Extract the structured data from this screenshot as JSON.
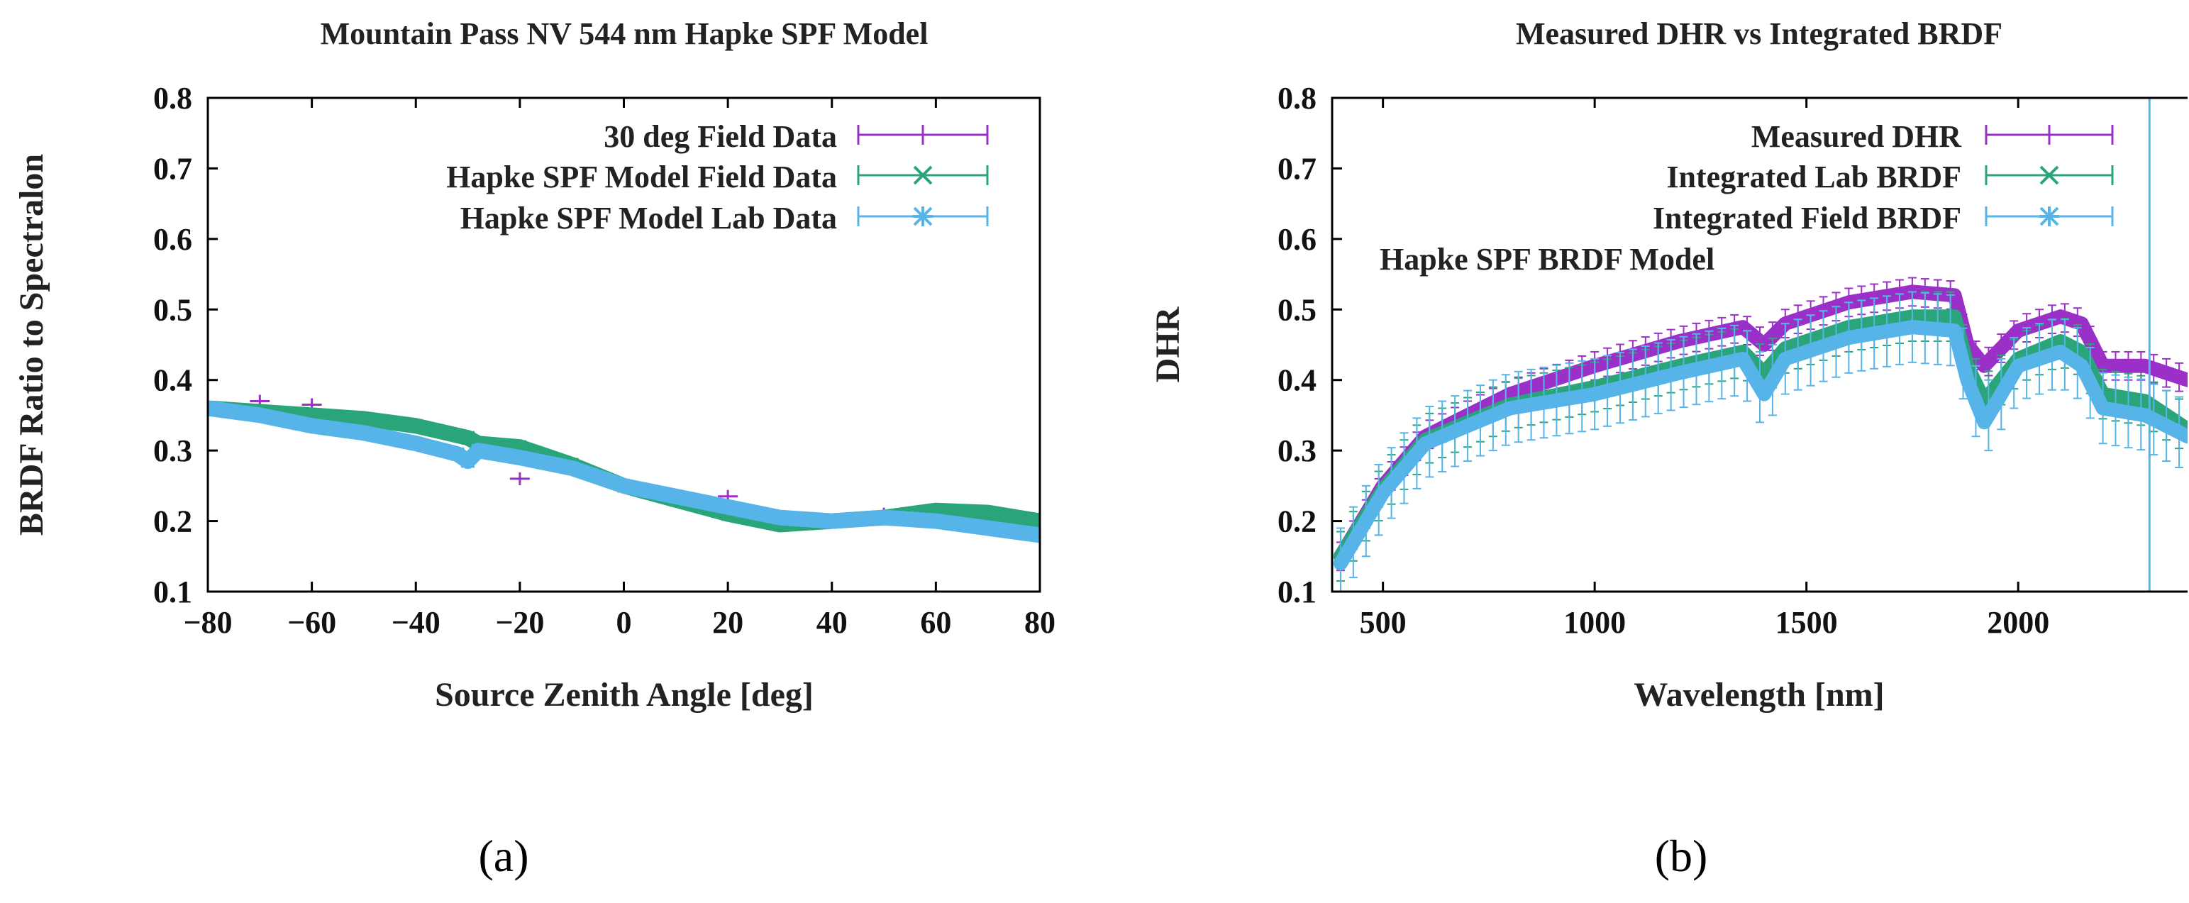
{
  "chart_data": [
    {
      "type": "line",
      "panel_caption": "(a)",
      "title": "Mountain Pass NV 544 nm Hapke SPF Model",
      "xlabel": "Source Zenith Angle [deg]",
      "ylabel": "BRDF Ratio to Spectralon",
      "xlim": [
        -80,
        80
      ],
      "ylim": [
        0.1,
        0.8
      ],
      "xticks": [
        -80,
        -60,
        -40,
        -20,
        0,
        20,
        40,
        60,
        80
      ],
      "xtick_labels": [
        "−80",
        "−60",
        "−40",
        "−20",
        "0",
        "20",
        "40",
        "60",
        "80"
      ],
      "yticks": [
        0.1,
        0.2,
        0.3,
        0.4,
        0.5,
        0.6,
        0.7,
        0.8
      ],
      "ytick_labels": [
        "0.1",
        "0.2",
        "0.3",
        "0.4",
        "0.5",
        "0.6",
        "0.7",
        "0.8"
      ],
      "grid": false,
      "legend_position": "top-right",
      "series": [
        {
          "name": "30 deg Field Data",
          "color": "#9b30c8",
          "style": "points-errorbars",
          "x": [
            -70,
            -60,
            -20,
            20,
            50
          ],
          "y": [
            0.37,
            0.365,
            0.26,
            0.235,
            0.21
          ]
        },
        {
          "name": "Hapke SPF Model Field Data",
          "color": "#2aa57a",
          "style": "thick-band",
          "x": [
            -80,
            -70,
            -60,
            -50,
            -40,
            -30,
            -28,
            -20,
            -10,
            0,
            10,
            20,
            30,
            40,
            50,
            60,
            70,
            80
          ],
          "y": [
            0.36,
            0.355,
            0.35,
            0.345,
            0.335,
            0.318,
            0.31,
            0.305,
            0.28,
            0.25,
            0.23,
            0.21,
            0.195,
            0.2,
            0.205,
            0.215,
            0.212,
            0.2
          ]
        },
        {
          "name": "Hapke SPF Model Lab Data",
          "color": "#56b4e9",
          "style": "thick-band",
          "x": [
            -80,
            -70,
            -60,
            -50,
            -40,
            -32,
            -30,
            -28,
            -20,
            -10,
            0,
            10,
            20,
            30,
            40,
            50,
            60,
            70,
            80
          ],
          "y": [
            0.36,
            0.35,
            0.335,
            0.325,
            0.31,
            0.295,
            0.285,
            0.3,
            0.29,
            0.275,
            0.25,
            0.235,
            0.22,
            0.205,
            0.2,
            0.205,
            0.2,
            0.19,
            0.18
          ]
        }
      ]
    },
    {
      "type": "line",
      "panel_caption": "(b)",
      "title": "Measured DHR vs Integrated BRDF",
      "xlabel": "Wavelength [nm]",
      "ylabel": "DHR",
      "xlim": [
        380,
        2400
      ],
      "ylim": [
        0.1,
        0.8
      ],
      "xticks": [
        500,
        1000,
        1500,
        2000
      ],
      "xtick_labels": [
        "500",
        "1000",
        "1500",
        "2000"
      ],
      "yticks": [
        0.1,
        0.2,
        0.3,
        0.4,
        0.5,
        0.6,
        0.7,
        0.8
      ],
      "ytick_labels": [
        "0.1",
        "0.2",
        "0.3",
        "0.4",
        "0.5",
        "0.6",
        "0.7",
        "0.8"
      ],
      "grid": false,
      "legend_position": "top-right",
      "annotation": "Hapke SPF BRDF Model",
      "series": [
        {
          "name": "Measured DHR",
          "color": "#9b30c8",
          "style": "thick-band",
          "x": [
            400,
            500,
            600,
            700,
            800,
            1000,
            1200,
            1350,
            1400,
            1450,
            1600,
            1750,
            1850,
            1880,
            1920,
            2000,
            2100,
            2150,
            2200,
            2300,
            2400
          ],
          "y": [
            0.15,
            0.25,
            0.32,
            0.35,
            0.38,
            0.42,
            0.455,
            0.475,
            0.45,
            0.48,
            0.51,
            0.525,
            0.52,
            0.45,
            0.42,
            0.47,
            0.49,
            0.48,
            0.42,
            0.42,
            0.4
          ]
        },
        {
          "name": "Integrated Lab BRDF",
          "color": "#2aa57a",
          "style": "thick-band",
          "x": [
            400,
            500,
            600,
            700,
            800,
            1000,
            1200,
            1350,
            1400,
            1450,
            1600,
            1750,
            1850,
            1880,
            1920,
            2000,
            2100,
            2150,
            2200,
            2300,
            2400
          ],
          "y": [
            0.15,
            0.245,
            0.315,
            0.34,
            0.365,
            0.39,
            0.42,
            0.44,
            0.41,
            0.445,
            0.475,
            0.49,
            0.49,
            0.42,
            0.37,
            0.43,
            0.455,
            0.44,
            0.38,
            0.37,
            0.33
          ]
        },
        {
          "name": "Integrated Field BRDF",
          "color": "#56b4e9",
          "style": "thick-band",
          "x": [
            400,
            500,
            600,
            700,
            800,
            1000,
            1200,
            1350,
            1400,
            1450,
            1600,
            1750,
            1850,
            1880,
            1920,
            2000,
            2100,
            2150,
            2200,
            2300,
            2400
          ],
          "y": [
            0.14,
            0.24,
            0.31,
            0.335,
            0.36,
            0.38,
            0.41,
            0.43,
            0.38,
            0.43,
            0.46,
            0.475,
            0.47,
            0.4,
            0.34,
            0.42,
            0.44,
            0.42,
            0.36,
            0.35,
            0.32
          ]
        }
      ]
    }
  ]
}
